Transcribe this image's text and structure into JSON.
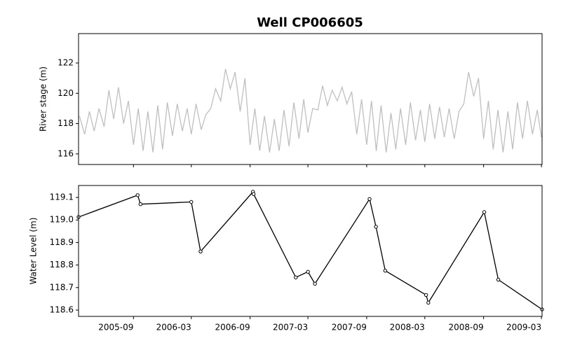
{
  "title": "Well CP006605",
  "chart_data": [
    {
      "type": "line",
      "ylabel": "River stage (m)",
      "xlim": [
        "2005-03-13",
        "2009-03-03"
      ],
      "ylim": [
        115.3,
        123.94
      ],
      "yticks": [
        116,
        118,
        120,
        122
      ],
      "x": [
        "2005-03-16",
        "2005-04-01",
        "2005-04-16",
        "2005-05-01",
        "2005-05-16",
        "2005-06-01",
        "2005-06-16",
        "2005-07-01",
        "2005-07-16",
        "2005-08-01",
        "2005-08-16",
        "2005-09-01",
        "2005-09-16",
        "2005-10-01",
        "2005-10-16",
        "2005-11-01",
        "2005-11-16",
        "2005-12-01",
        "2005-12-16",
        "2006-01-01",
        "2006-01-16",
        "2006-02-01",
        "2006-02-16",
        "2006-03-01",
        "2006-03-16",
        "2006-04-01",
        "2006-04-16",
        "2006-05-01",
        "2006-05-16",
        "2006-06-01",
        "2006-06-16",
        "2006-07-01",
        "2006-07-16",
        "2006-08-01",
        "2006-08-16",
        "2006-09-01",
        "2006-09-16",
        "2006-10-01",
        "2006-10-16",
        "2006-11-01",
        "2006-11-16",
        "2006-12-01",
        "2006-12-16",
        "2007-01-01",
        "2007-01-16",
        "2007-02-01",
        "2007-02-16",
        "2007-03-01",
        "2007-03-16",
        "2007-04-01",
        "2007-04-16",
        "2007-05-01",
        "2007-05-16",
        "2007-06-01",
        "2007-06-16",
        "2007-07-01",
        "2007-07-16",
        "2007-08-01",
        "2007-08-16",
        "2007-09-01",
        "2007-09-16",
        "2007-10-01",
        "2007-10-16",
        "2007-11-01",
        "2007-11-16",
        "2007-12-01",
        "2007-12-16",
        "2008-01-01",
        "2008-01-16",
        "2008-02-01",
        "2008-02-16",
        "2008-03-01",
        "2008-03-16",
        "2008-04-01",
        "2008-04-16",
        "2008-05-01",
        "2008-05-16",
        "2008-06-01",
        "2008-06-16",
        "2008-07-01",
        "2008-07-16",
        "2008-08-01",
        "2008-08-16",
        "2008-09-01",
        "2008-09-16",
        "2008-10-01",
        "2008-10-16",
        "2008-11-01",
        "2008-11-16",
        "2008-12-01",
        "2008-12-16",
        "2009-01-01",
        "2009-01-16",
        "2009-02-01",
        "2009-02-16",
        "2009-03-01"
      ],
      "series": [
        {
          "color": "#bfbfbf",
          "values": [
            118.5,
            117.3,
            118.8,
            117.5,
            119.0,
            117.8,
            120.2,
            118.3,
            120.4,
            118.0,
            119.5,
            116.6,
            119.0,
            116.2,
            118.8,
            116.1,
            119.2,
            116.3,
            119.4,
            117.2,
            119.3,
            117.5,
            119.0,
            117.3,
            119.3,
            117.6,
            118.6,
            119.0,
            120.3,
            119.5,
            121.6,
            120.3,
            121.4,
            118.8,
            121.0,
            116.6,
            119.0,
            116.2,
            118.5,
            116.1,
            118.3,
            116.2,
            118.9,
            116.5,
            119.4,
            117.0,
            119.6,
            117.4,
            119.0,
            118.9,
            120.5,
            119.2,
            120.2,
            119.5,
            120.4,
            119.3,
            120.1,
            117.3,
            119.6,
            116.6,
            119.5,
            116.2,
            119.2,
            116.1,
            118.7,
            116.3,
            119.0,
            116.6,
            119.4,
            116.9,
            118.9,
            116.8,
            119.3,
            117.0,
            119.1,
            117.1,
            119.0,
            117.0,
            118.8,
            119.3,
            121.4,
            119.8,
            121.0,
            117.0,
            119.5,
            116.3,
            118.9,
            116.1,
            118.8,
            116.3,
            119.4,
            117.0,
            119.5,
            117.3,
            118.9,
            117.1
          ]
        }
      ]
    },
    {
      "type": "line",
      "ylabel": "Water Level (m)",
      "marker": "o",
      "xlim": [
        "2005-03-13",
        "2009-03-03"
      ],
      "xticks": [
        {
          "value": "2005-09-01",
          "label": "2005-09"
        },
        {
          "value": "2006-03-01",
          "label": "2006-03"
        },
        {
          "value": "2006-09-01",
          "label": "2006-09"
        },
        {
          "value": "2007-03-01",
          "label": "2007-03"
        },
        {
          "value": "2007-09-01",
          "label": "2007-09"
        },
        {
          "value": "2008-03-01",
          "label": "2008-03"
        },
        {
          "value": "2008-09-01",
          "label": "2008-09"
        },
        {
          "value": "2009-03-01",
          "label": "2009-03"
        }
      ],
      "ylim": [
        118.572,
        119.153
      ],
      "yticks": [
        118.6,
        118.7,
        118.8,
        118.9,
        {
          "value": 119,
          "label": "119.0"
        },
        119.1
      ],
      "x": [
        "2005-03-13",
        "2005-09-14",
        "2005-09-23",
        "2006-03-01",
        "2006-03-30",
        "2006-09-10",
        "2006-09-12",
        "2007-01-22",
        "2007-03-01",
        "2007-03-23",
        "2007-09-10",
        "2007-09-30",
        "2007-10-29",
        "2008-03-05",
        "2008-03-12",
        "2008-09-03",
        "2008-10-17",
        "2009-03-03"
      ],
      "series": [
        {
          "color": "#000000",
          "values": [
            119.013,
            119.11,
            119.07,
            119.08,
            118.86,
            119.125,
            119.115,
            118.745,
            118.77,
            118.717,
            119.093,
            118.97,
            118.775,
            118.667,
            118.633,
            119.035,
            118.735,
            118.603
          ]
        }
      ]
    }
  ]
}
